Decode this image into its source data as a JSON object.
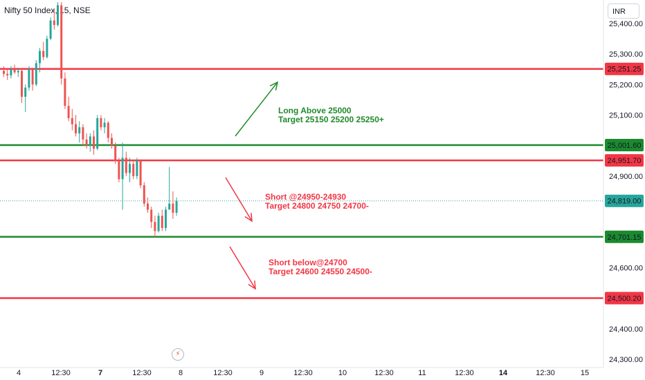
{
  "symbol": "Nifty 50 Index, 15, NSE",
  "currency": "INR",
  "colors": {
    "up": "#26a69a",
    "down": "#ef5350",
    "red_line": "#f23645",
    "green_line": "#1b8a2f",
    "text_green": "#1f8a2a",
    "text_red": "#f23645"
  },
  "chart_data": {
    "type": "candlestick",
    "y_ticks": [
      "25,400.00",
      "25,300.00",
      "25,200.00",
      "25,100.00",
      "24,900.00",
      "24,600.00",
      "24,400.00",
      "24,300.00"
    ],
    "x_ticks": [
      {
        "label": "4",
        "bold": false
      },
      {
        "label": "12:30",
        "bold": false
      },
      {
        "label": "7",
        "bold": true
      },
      {
        "label": "12:30",
        "bold": false
      },
      {
        "label": "8",
        "bold": false
      },
      {
        "label": "12:30",
        "bold": false
      },
      {
        "label": "9",
        "bold": false
      },
      {
        "label": "12:30",
        "bold": false
      },
      {
        "label": "10",
        "bold": false
      },
      {
        "label": "12:30",
        "bold": false
      },
      {
        "label": "11",
        "bold": false
      },
      {
        "label": "12:30",
        "bold": false
      },
      {
        "label": "14",
        "bold": true
      },
      {
        "label": "12:30",
        "bold": false
      },
      {
        "label": "15",
        "bold": false
      }
    ],
    "levels": [
      {
        "value": 25251.25,
        "label": "25,251.25",
        "color": "red"
      },
      {
        "value": 25001.6,
        "label": "25,001.60",
        "color": "green"
      },
      {
        "value": 24951.7,
        "label": "24,951.70",
        "color": "red"
      },
      {
        "value": 24701.15,
        "label": "24,701.15",
        "color": "green"
      },
      {
        "value": 24500.2,
        "label": "24,500.20",
        "color": "red"
      }
    ],
    "current_price": {
      "value": 24819.0,
      "label": "24,819.00"
    },
    "candles": [
      [
        25245,
        25260,
        25225,
        25235
      ],
      [
        25235,
        25250,
        25215,
        25230
      ],
      [
        25230,
        25260,
        25220,
        25250
      ],
      [
        25250,
        25265,
        25235,
        25240
      ],
      [
        25240,
        25255,
        25225,
        25245
      ],
      [
        25245,
        25250,
        25140,
        25160
      ],
      [
        25160,
        25200,
        25110,
        25190
      ],
      [
        25190,
        25260,
        25180,
        25250
      ],
      [
        25250,
        25255,
        25180,
        25200
      ],
      [
        25200,
        25280,
        25195,
        25270
      ],
      [
        25270,
        25320,
        25240,
        25310
      ],
      [
        25310,
        25340,
        25280,
        25290
      ],
      [
        25290,
        25360,
        25285,
        25350
      ],
      [
        25350,
        25420,
        25345,
        25410
      ],
      [
        25410,
        25450,
        25380,
        25395
      ],
      [
        25395,
        25470,
        25390,
        25460
      ],
      [
        25460,
        25470,
        25200,
        25220
      ],
      [
        25220,
        25240,
        25120,
        25130
      ],
      [
        25130,
        25160,
        25080,
        25090
      ],
      [
        25090,
        25120,
        25050,
        25070
      ],
      [
        25070,
        25100,
        25030,
        25040
      ],
      [
        25040,
        25080,
        25010,
        25060
      ],
      [
        25060,
        25070,
        25000,
        25020
      ],
      [
        25020,
        25040,
        24990,
        25000
      ],
      [
        25000,
        25040,
        24980,
        25030
      ],
      [
        25030,
        25050,
        24970,
        24990
      ],
      [
        24990,
        25100,
        24985,
        25090
      ],
      [
        25090,
        25100,
        25050,
        25060
      ],
      [
        25060,
        25090,
        25040,
        25075
      ],
      [
        25075,
        25080,
        25010,
        25025
      ],
      [
        25025,
        25040,
        24990,
        25000
      ],
      [
        25000,
        25010,
        24940,
        24950
      ],
      [
        24950,
        24960,
        24880,
        24890
      ],
      [
        24890,
        25010,
        24790,
        24960
      ],
      [
        24960,
        24980,
        24900,
        24910
      ],
      [
        24910,
        24960,
        24880,
        24940
      ],
      [
        24940,
        24950,
        24890,
        24900
      ],
      [
        24900,
        24960,
        24890,
        24950
      ],
      [
        24950,
        24955,
        24860,
        24870
      ],
      [
        24870,
        24880,
        24800,
        24810
      ],
      [
        24810,
        24830,
        24780,
        24790
      ],
      [
        24790,
        24800,
        24730,
        24750
      ],
      [
        24750,
        24770,
        24700,
        24720
      ],
      [
        24720,
        24780,
        24715,
        24770
      ],
      [
        24770,
        24790,
        24720,
        24730
      ],
      [
        24730,
        24800,
        24720,
        24790
      ],
      [
        24790,
        24930,
        24790,
        24810
      ],
      [
        24810,
        24850,
        24760,
        24780
      ],
      [
        24780,
        24830,
        24770,
        24819
      ]
    ]
  },
  "annotations": [
    {
      "line1": "Long Above 25000",
      "line2": "Target 25150 25200 25250+",
      "color": "green"
    },
    {
      "line1": "Short @24950-24930",
      "line2": "Target 24800 24750 24700-",
      "color": "red"
    },
    {
      "line1": "Short below@24700",
      "line2": "Target 24600 24550 24500-",
      "color": "red"
    }
  ],
  "lightning_icon": "lightning-icon"
}
